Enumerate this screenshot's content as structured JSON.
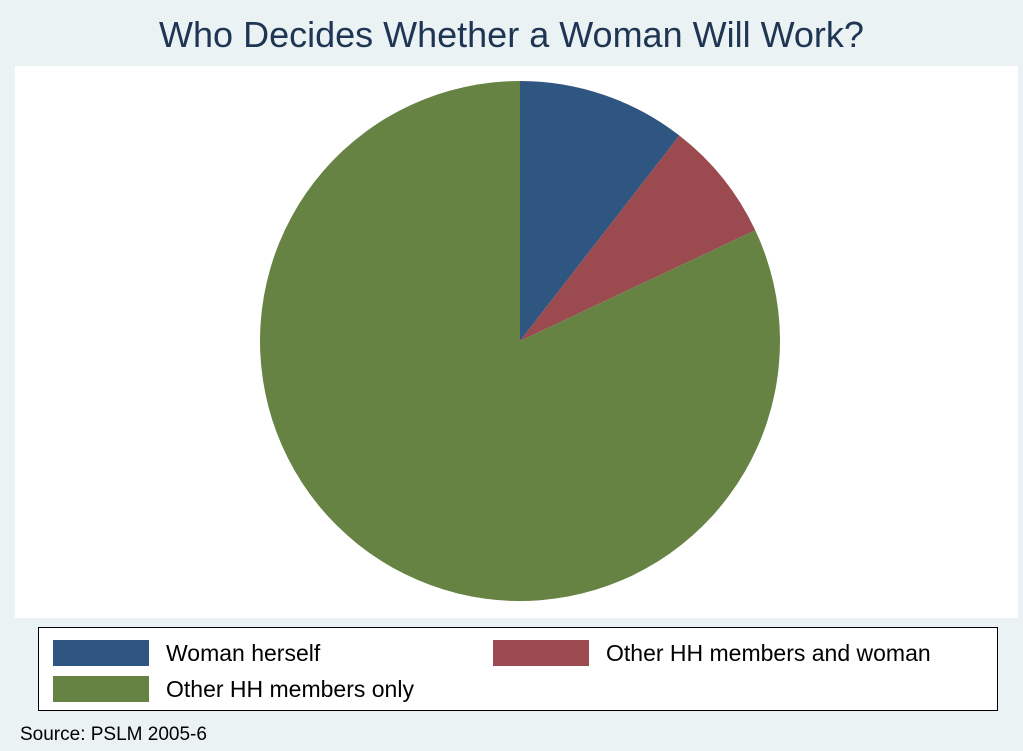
{
  "chart_data": {
    "type": "pie",
    "title": "Who Decides Whether a Woman Will Work?",
    "categories": [
      "Woman herself",
      "Other HH members and woman",
      "Other HH members only"
    ],
    "values": [
      10.5,
      7.5,
      82.0
    ],
    "colors": [
      "#2f5680",
      "#9b4a4f",
      "#668343"
    ],
    "start_angle": "12 o'clock",
    "direction": "clockwise",
    "legend": {
      "placement": "bottom",
      "columns": 2
    },
    "note": "Source: PSLM 2005-6"
  }
}
